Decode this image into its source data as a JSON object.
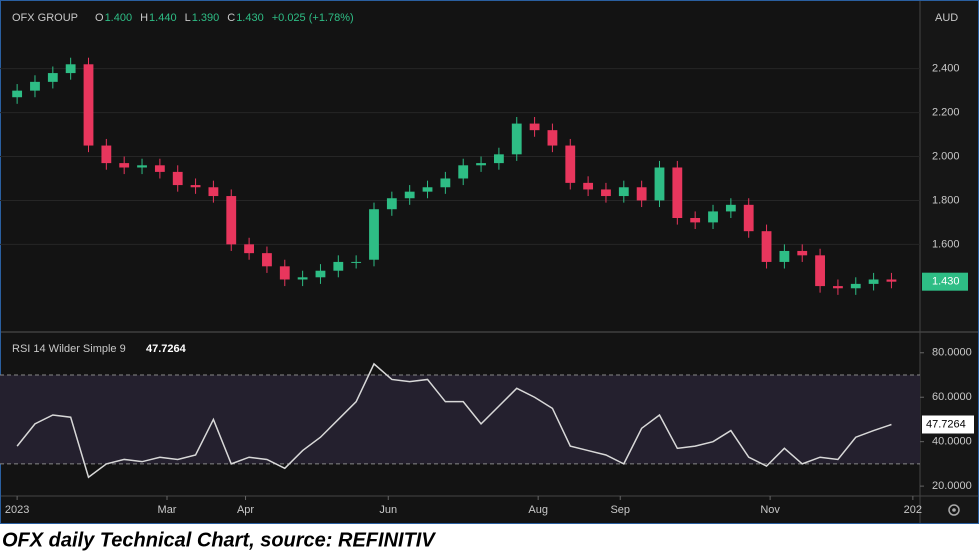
{
  "caption": "OFX daily Technical Chart, source: REFINITIV",
  "chart_data": [
    {
      "type": "candlestick",
      "title": "OFX GROUP",
      "currency": "AUD",
      "legend": [
        "O",
        "1.400",
        "H",
        "1.440",
        "L",
        "1.390",
        "C",
        "1.430",
        "+0.025 (+1.78%)"
      ],
      "up_color": "#2ebd85",
      "down_color": "#e8365d",
      "x": [
        0,
        5,
        10,
        15,
        20,
        25,
        30,
        35,
        40,
        45,
        50,
        55,
        60,
        65,
        70,
        75,
        80,
        85,
        90,
        95,
        100,
        105,
        110,
        115,
        120,
        125,
        130,
        135,
        140,
        145,
        150,
        155,
        160,
        165,
        170,
        175,
        180,
        185,
        190,
        195,
        200,
        205,
        210,
        215,
        220,
        225,
        230,
        235,
        240,
        245
      ],
      "open": [
        2.27,
        2.3,
        2.34,
        2.38,
        2.42,
        2.05,
        1.97,
        1.95,
        1.96,
        1.93,
        1.87,
        1.86,
        1.82,
        1.6,
        1.56,
        1.5,
        1.44,
        1.45,
        1.48,
        1.52,
        1.53,
        1.76,
        1.81,
        1.84,
        1.86,
        1.9,
        1.96,
        1.97,
        2.01,
        2.15,
        2.12,
        2.05,
        1.88,
        1.85,
        1.82,
        1.86,
        1.8,
        1.95,
        1.72,
        1.7,
        1.75,
        1.78,
        1.66,
        1.52,
        1.57,
        1.55,
        1.41,
        1.4,
        1.42,
        1.44
      ],
      "high": [
        2.33,
        2.37,
        2.41,
        2.45,
        2.45,
        2.08,
        2.0,
        1.99,
        1.99,
        1.96,
        1.9,
        1.89,
        1.85,
        1.63,
        1.59,
        1.53,
        1.48,
        1.51,
        1.55,
        1.55,
        1.79,
        1.84,
        1.87,
        1.89,
        1.93,
        1.99,
        2.0,
        2.04,
        2.18,
        2.18,
        2.15,
        2.08,
        1.91,
        1.88,
        1.89,
        1.89,
        1.98,
        1.98,
        1.75,
        1.78,
        1.81,
        1.81,
        1.69,
        1.6,
        1.6,
        1.58,
        1.44,
        1.45,
        1.47,
        1.47
      ],
      "low": [
        2.24,
        2.27,
        2.31,
        2.35,
        2.02,
        1.94,
        1.92,
        1.92,
        1.9,
        1.84,
        1.83,
        1.79,
        1.57,
        1.53,
        1.47,
        1.41,
        1.41,
        1.42,
        1.45,
        1.49,
        1.5,
        1.73,
        1.78,
        1.81,
        1.83,
        1.87,
        1.93,
        1.94,
        1.98,
        2.09,
        2.02,
        1.85,
        1.82,
        1.79,
        1.79,
        1.77,
        1.77,
        1.69,
        1.67,
        1.67,
        1.72,
        1.63,
        1.49,
        1.49,
        1.52,
        1.38,
        1.37,
        1.37,
        1.39,
        1.4
      ],
      "close": [
        2.3,
        2.34,
        2.38,
        2.42,
        2.05,
        1.97,
        1.95,
        1.96,
        1.93,
        1.87,
        1.86,
        1.82,
        1.6,
        1.56,
        1.5,
        1.44,
        1.45,
        1.48,
        1.52,
        1.52,
        1.76,
        1.81,
        1.84,
        1.86,
        1.9,
        1.96,
        1.97,
        2.01,
        2.15,
        2.12,
        2.05,
        1.88,
        1.85,
        1.82,
        1.86,
        1.8,
        1.95,
        1.72,
        1.7,
        1.75,
        1.78,
        1.66,
        1.52,
        1.57,
        1.55,
        1.41,
        1.4,
        1.42,
        1.44,
        1.43
      ],
      "xlim": [
        -4.8,
        253
      ],
      "ylim": [
        1.21,
        2.69
      ],
      "yticks": [
        {
          "value": 1.6,
          "label": "1.600"
        },
        {
          "value": 1.8,
          "label": "1.800"
        },
        {
          "value": 2.0,
          "label": "2.000"
        },
        {
          "value": 2.2,
          "label": "2.200"
        },
        {
          "value": 2.4,
          "label": "2.400"
        }
      ]
    },
    {
      "type": "line",
      "title": "RSI 14 Wilder Simple 9",
      "color": "#d8d8d8",
      "x": [
        0,
        5,
        10,
        15,
        20,
        25,
        30,
        35,
        40,
        45,
        50,
        55,
        60,
        65,
        70,
        75,
        80,
        85,
        90,
        95,
        100,
        105,
        110,
        115,
        120,
        125,
        130,
        135,
        140,
        145,
        150,
        155,
        160,
        165,
        170,
        175,
        180,
        185,
        190,
        195,
        200,
        205,
        210,
        215,
        220,
        225,
        230,
        235,
        240,
        245
      ],
      "values": [
        38,
        48,
        52,
        51,
        24,
        30,
        32,
        31,
        33,
        32,
        34,
        50,
        30,
        33,
        32,
        28,
        36,
        42,
        50,
        58,
        75,
        68,
        67,
        68,
        58,
        58,
        48,
        56,
        64,
        60,
        55,
        38,
        36,
        34,
        30,
        46,
        52,
        37,
        38,
        40,
        45,
        33,
        29,
        37,
        30,
        33,
        32,
        42,
        45,
        47.7264
      ],
      "levels": [
        70,
        30
      ],
      "xlim": [
        -4.8,
        253
      ],
      "ylim": [
        16,
        88
      ],
      "yticks": [
        {
          "value": 20,
          "label": "20.0000"
        },
        {
          "value": 40,
          "label": "40.0000"
        },
        {
          "value": 60,
          "label": "60.0000"
        },
        {
          "value": 80,
          "label": "80.0000"
        }
      ],
      "xticks": [
        {
          "value": 0,
          "label": "2023"
        },
        {
          "value": 42,
          "label": "Mar"
        },
        {
          "value": 64,
          "label": "Apr"
        },
        {
          "value": 104,
          "label": "Jun"
        },
        {
          "value": 146,
          "label": "Aug"
        },
        {
          "value": 169,
          "label": "Sep"
        },
        {
          "value": 211,
          "label": "Nov"
        },
        {
          "value": 251,
          "label": "202"
        }
      ]
    }
  ]
}
